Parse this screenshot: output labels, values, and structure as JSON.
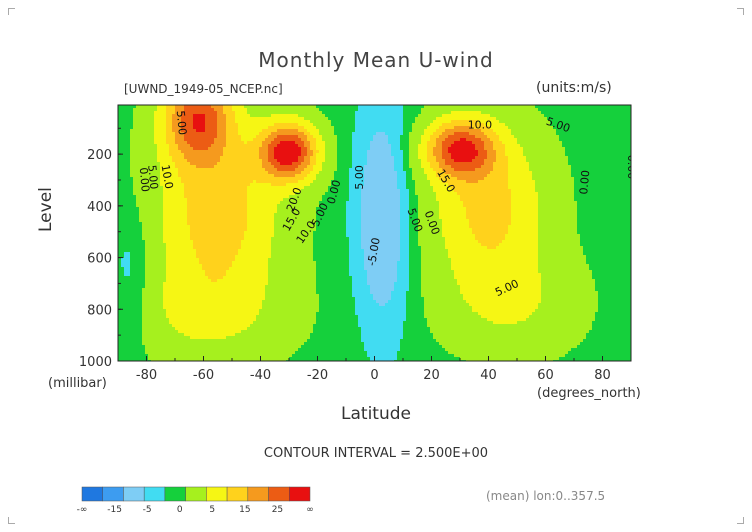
{
  "chart_data": {
    "type": "heatmap",
    "title": "Monthly Mean U-wind",
    "subtitle_left": "[UWND_1949-05_NCEP.nc]",
    "subtitle_right": "(units:m/s)",
    "xlabel": "Latitude",
    "x_unit_label": "(degrees_north)",
    "ylabel": "Level",
    "y_unit_label": "(millibar)",
    "x_ticks": [
      "-80",
      "-60",
      "-40",
      "-20",
      "0",
      "20",
      "40",
      "60",
      "80"
    ],
    "x_tick_values": [
      -80,
      -60,
      -40,
      -20,
      0,
      20,
      40,
      60,
      80
    ],
    "y_ticks": [
      "200",
      "400",
      "600",
      "800",
      "1000"
    ],
    "y_tick_values": [
      200,
      400,
      600,
      800,
      1000
    ],
    "xlim": [
      -90,
      90
    ],
    "ylim": [
      1000,
      10
    ],
    "contour_interval_label": "CONTOUR INTERVAL = 2.500E+00",
    "contour_labels": [
      {
        "text": "-5.00",
        "lat": 1,
        "lev": 580,
        "rot": -80
      },
      {
        "text": "5.00",
        "lat": -69,
        "lev": 80,
        "rot": 85
      },
      {
        "text": "0.00",
        "lat": -82,
        "lev": 300,
        "rot": 85
      },
      {
        "text": "5.00",
        "lat": -79,
        "lev": 290,
        "rot": 85
      },
      {
        "text": "10.0",
        "lat": -74,
        "lev": 290,
        "rot": 80
      },
      {
        "text": "20.0",
        "lat": -27,
        "lev": 380,
        "rot": -70
      },
      {
        "text": "15.0",
        "lat": -28,
        "lev": 460,
        "rot": -60
      },
      {
        "text": "10.0",
        "lat": -23,
        "lev": 510,
        "rot": -55
      },
      {
        "text": "5.00",
        "lat": -18,
        "lev": 440,
        "rot": -65
      },
      {
        "text": "0.00",
        "lat": -13,
        "lev": 350,
        "rot": -75
      },
      {
        "text": "5.00",
        "lat": -4,
        "lev": 290,
        "rot": -90
      },
      {
        "text": "10.0",
        "lat": 37,
        "lev": 100,
        "rot": 0
      },
      {
        "text": "5.00",
        "lat": 64,
        "lev": 100,
        "rot": 20
      },
      {
        "text": "15.0",
        "lat": 24,
        "lev": 310,
        "rot": 60
      },
      {
        "text": "5.00",
        "lat": 13,
        "lev": 460,
        "rot": 70
      },
      {
        "text": "0.00",
        "lat": 19,
        "lev": 470,
        "rot": 70
      },
      {
        "text": "0.00",
        "lat": 75,
        "lev": 310,
        "rot": -85
      },
      {
        "text": "0.00",
        "lat": 89,
        "lev": 250,
        "rot": 90
      },
      {
        "text": "5.00",
        "lat": 47,
        "lev": 730,
        "rot": -25
      }
    ],
    "colorbar": {
      "tick_labels": [
        "-∞",
        "-15",
        "-5",
        "0",
        "5",
        "15",
        "25",
        "∞"
      ],
      "colors": [
        "#1f78e0",
        "#3d9cf0",
        "#7ecdf5",
        "#41dcf2",
        "#15d03c",
        "#a6f01e",
        "#f6f614",
        "#ffd21c",
        "#f59a1e",
        "#ec5c14",
        "#e81010"
      ]
    },
    "note": "(mean) lon:0..357.5"
  }
}
